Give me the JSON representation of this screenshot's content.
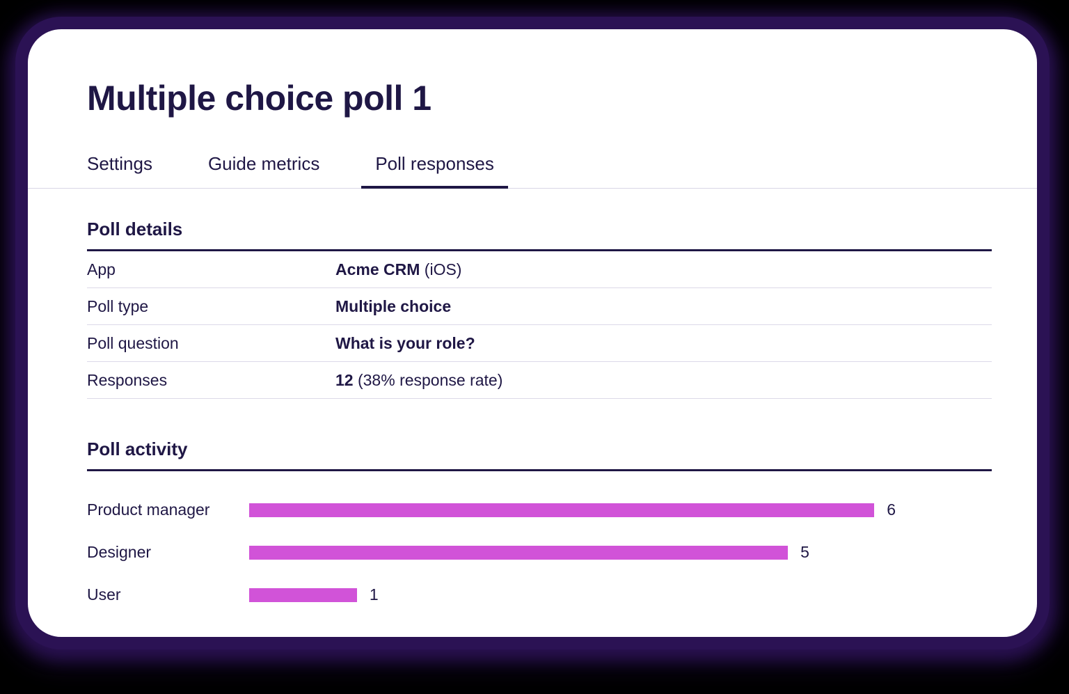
{
  "header": {
    "title": "Multiple choice poll 1"
  },
  "tabs": [
    {
      "label": "Settings",
      "active": false
    },
    {
      "label": "Guide metrics",
      "active": false
    },
    {
      "label": "Poll responses",
      "active": true
    }
  ],
  "poll_details": {
    "heading": "Poll details",
    "rows": [
      {
        "label": "App",
        "value_bold": "Acme CRM",
        "value_rest": " (iOS)"
      },
      {
        "label": "Poll type",
        "value_bold": "Multiple choice",
        "value_rest": ""
      },
      {
        "label": "Poll question",
        "value_bold": "What is your role?",
        "value_rest": ""
      },
      {
        "label": "Responses",
        "value_bold": "12",
        "value_rest": " (38% response rate)"
      }
    ]
  },
  "poll_activity": {
    "heading": "Poll activity"
  },
  "chart_data": {
    "type": "bar",
    "orientation": "horizontal",
    "title": "Poll activity",
    "categories": [
      "Product manager",
      "Designer",
      "User"
    ],
    "values": [
      6,
      5,
      1
    ],
    "value_labels": [
      "6",
      "5",
      "1"
    ],
    "axis_max": 6,
    "grid": false,
    "legend": false,
    "bar_color": "#d153d8"
  },
  "colors": {
    "background": "#000000",
    "card_glow": "#2b1254",
    "card_background": "#ffffff",
    "text": "#1f1745",
    "divider_light": "#dcd9e8",
    "heading_rule": "#1f1745",
    "bar": "#d153d8"
  }
}
